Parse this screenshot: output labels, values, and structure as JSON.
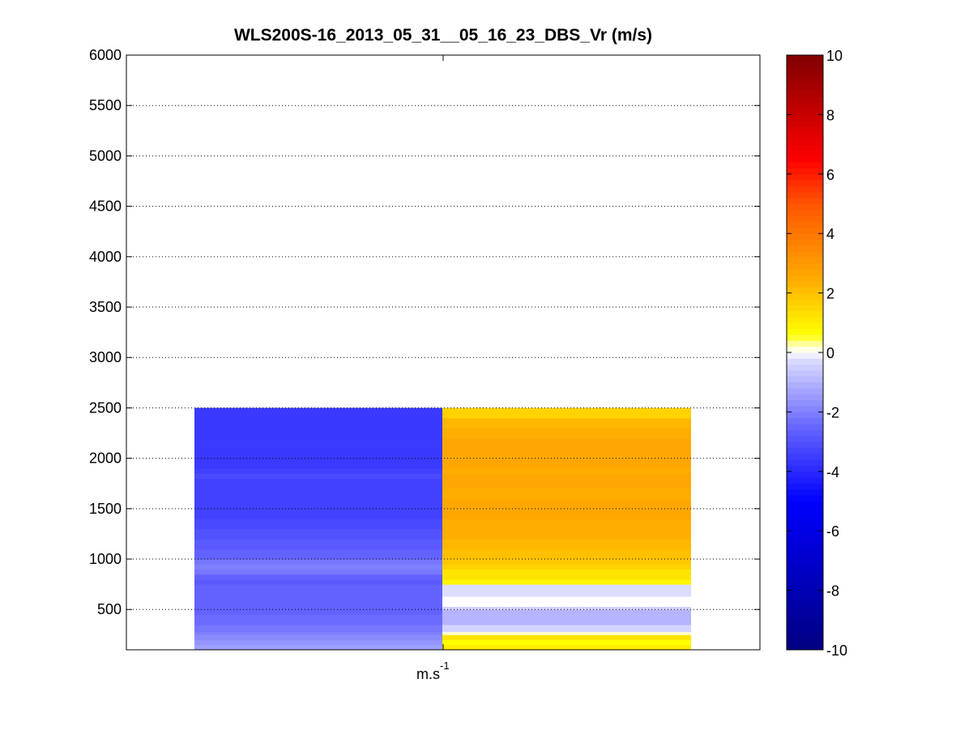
{
  "chart_data": {
    "type": "heatmap",
    "title": "WLS200S-16_2013_05_31__05_16_23_DBS_Vr (m/s)",
    "xlabel_base": "m.s",
    "xlabel_exponent": "-1",
    "ylim": [
      100,
      6000
    ],
    "yticks": [
      500,
      1000,
      1500,
      2000,
      2500,
      3000,
      3500,
      4000,
      4500,
      5000,
      5500,
      6000
    ],
    "grid": true,
    "gate_edges": [
      100,
      150,
      200,
      250,
      280,
      350,
      450,
      500,
      530,
      630,
      750,
      800,
      850,
      900,
      950,
      1000,
      1100,
      1200,
      1300,
      1400,
      1500,
      1600,
      1700,
      1800,
      1850,
      1900,
      2000,
      2100,
      2200,
      2300,
      2400,
      2500
    ],
    "columns": [
      {
        "values": [
          -1.4,
          -1.6,
          -1.8,
          -2.0,
          -2.2,
          -2.4,
          -2.6,
          -2.6,
          -2.6,
          -2.6,
          -2.8,
          -2.6,
          -2.2,
          -2.0,
          -2.2,
          -2.6,
          -2.8,
          -3.0,
          -3.2,
          -3.4,
          -3.4,
          -3.4,
          -3.4,
          -3.2,
          -3.4,
          -3.6,
          -3.6,
          -3.6,
          -3.6,
          -3.6,
          -3.6
        ]
      },
      {
        "values": [
          1.0,
          0.6,
          1.2,
          0.2,
          -0.4,
          -1.0,
          -1.0,
          -0.4,
          0.0,
          -0.2,
          0.8,
          1.2,
          1.2,
          1.6,
          1.8,
          2.0,
          2.2,
          2.4,
          2.4,
          2.6,
          2.6,
          2.4,
          2.6,
          2.6,
          2.4,
          2.6,
          2.6,
          2.6,
          2.4,
          2.2,
          1.6
        ]
      }
    ],
    "colorbar": {
      "clim": [
        -10,
        10
      ],
      "ticks": [
        -10,
        -8,
        -6,
        -4,
        -2,
        0,
        2,
        4,
        6,
        8,
        10
      ],
      "levels": 100,
      "colormap": [
        {
          "v": -10,
          "color": "#000080"
        },
        {
          "v": -7.5,
          "color": "#0000c0"
        },
        {
          "v": -5,
          "color": "#0000ff"
        },
        {
          "v": -2.5,
          "color": "#6666ff"
        },
        {
          "v": -0.2,
          "color": "#ddddff"
        },
        {
          "v": 0,
          "color": "#ffffff"
        },
        {
          "v": 0.2,
          "color": "#ffffcc"
        },
        {
          "v": 0.6,
          "color": "#ffff00"
        },
        {
          "v": 2.5,
          "color": "#ffaa00"
        },
        {
          "v": 5,
          "color": "#ff5500"
        },
        {
          "v": 6.5,
          "color": "#ff0000"
        },
        {
          "v": 10,
          "color": "#800000"
        }
      ]
    }
  }
}
